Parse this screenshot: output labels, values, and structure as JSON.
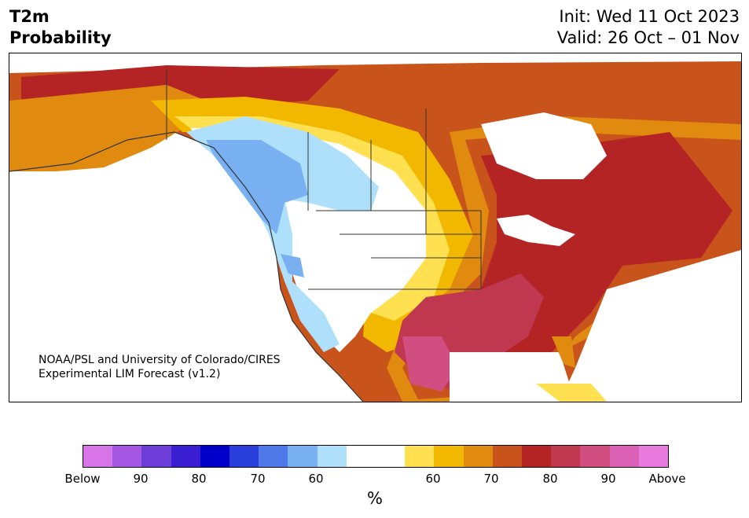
{
  "header": {
    "variable": "T2m",
    "product": "Probability",
    "init": "Init: Wed 11 Oct 2023",
    "valid": "Valid: 26 Oct – 01 Nov"
  },
  "credit": {
    "line1": "NOAA/PSL and University of Colorado/CIRES",
    "line2": "Experimental LIM Forecast (v1.2)"
  },
  "colorbar": {
    "colors": [
      "#d774e8",
      "#a357e2",
      "#6e3fd8",
      "#3a1fd2",
      "#0000c8",
      "#2a3edc",
      "#4f78e8",
      "#78b0f2",
      "#aee0fb",
      "#ffffff",
      "#ffffff",
      "#ffe050",
      "#f2b800",
      "#e08a10",
      "#c8541c",
      "#b52424",
      "#c03850",
      "#d04e80",
      "#db61b5",
      "#e87adf"
    ],
    "tick_labels": [
      "Below",
      "90",
      "80",
      "70",
      "60",
      "60",
      "70",
      "80",
      "90",
      "Above"
    ],
    "unit": "%"
  },
  "legend_colors": {
    "above_weak": "#ffe050",
    "above_orange": "#e08a10",
    "above_red": "#b52424",
    "above_pink": "#d04e80",
    "below_light": "#aee0fb",
    "below_mid": "#78b0f2"
  }
}
